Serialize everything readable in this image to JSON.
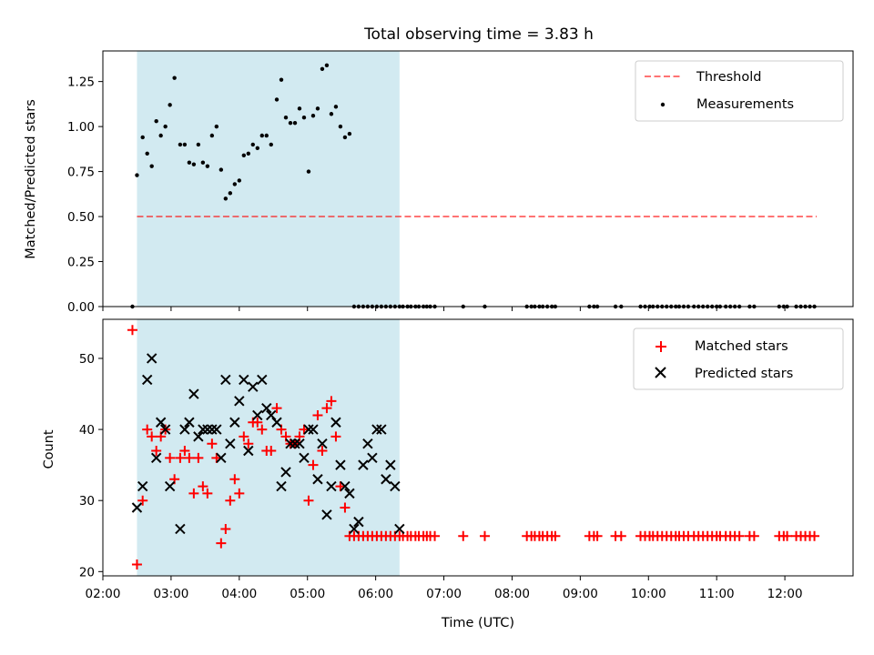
{
  "colors": {
    "shade": "#add8e6",
    "threshold": "#ff0000",
    "measurement": "#000000",
    "matched": "#ff0000",
    "predicted": "#000000"
  },
  "chart_data": [
    {
      "type": "scatter",
      "title": "Total observing time = 3.83 h",
      "xlabel": "",
      "ylabel": "Matched/Predicted stars",
      "xlim": [
        "02:00",
        "13:00"
      ],
      "ylim": [
        0,
        1.42
      ],
      "yticks": [
        0.0,
        0.25,
        0.5,
        0.75,
        1.0,
        1.25
      ],
      "ytick_labels": [
        "0.00",
        "0.25",
        "0.50",
        "0.75",
        "1.00",
        "1.25"
      ],
      "shaded_interval": [
        "02:30",
        "06:21"
      ],
      "legend_position": "top-right",
      "threshold": {
        "name": "Threshold",
        "y": 0.5,
        "x_range": [
          "02:30",
          "12:28"
        ]
      },
      "series": [
        {
          "name": "Measurements",
          "x": [
            "02:26",
            "02:30",
            "02:35",
            "02:39",
            "02:43",
            "02:47",
            "02:51",
            "02:55",
            "02:59",
            "03:03",
            "03:08",
            "03:12",
            "03:16",
            "03:20",
            "03:24",
            "03:28",
            "03:32",
            "03:36",
            "03:40",
            "03:44",
            "03:48",
            "03:52",
            "03:56",
            "04:00",
            "04:04",
            "04:08",
            "04:12",
            "04:16",
            "04:20",
            "04:24",
            "04:28",
            "04:33",
            "04:37",
            "04:41",
            "04:45",
            "04:49",
            "04:53",
            "04:57",
            "05:01",
            "05:05",
            "05:09",
            "05:13",
            "05:17",
            "05:21",
            "05:25",
            "05:29",
            "05:33",
            "05:37",
            "05:41",
            "05:45",
            "05:49",
            "05:53",
            "05:57",
            "06:01",
            "06:05",
            "06:09",
            "06:13",
            "06:17",
            "06:21",
            "06:24",
            "06:28",
            "06:31",
            "06:35",
            "06:38",
            "06:42",
            "06:45",
            "06:48",
            "06:52",
            "07:17",
            "07:36",
            "08:13",
            "08:17",
            "08:20",
            "08:24",
            "08:27",
            "08:31",
            "08:35",
            "08:38",
            "09:08",
            "09:12",
            "09:15",
            "09:31",
            "09:36",
            "09:53",
            "09:57",
            "10:01",
            "10:04",
            "10:08",
            "10:12",
            "10:16",
            "10:20",
            "10:24",
            "10:27",
            "10:31",
            "10:35",
            "10:40",
            "10:44",
            "10:48",
            "10:52",
            "10:56",
            "11:00",
            "11:03",
            "11:08",
            "11:12",
            "11:16",
            "11:20",
            "11:29",
            "11:33",
            "11:55",
            "11:59",
            "12:02",
            "12:10",
            "12:14",
            "12:18",
            "12:22",
            "12:26"
          ],
          "y": [
            0.0,
            0.73,
            0.94,
            0.85,
            0.78,
            1.03,
            0.95,
            1.0,
            1.12,
            1.27,
            0.9,
            0.9,
            0.8,
            0.79,
            0.9,
            0.8,
            0.78,
            0.95,
            1.0,
            0.76,
            0.6,
            0.63,
            0.68,
            0.7,
            0.84,
            0.85,
            0.9,
            0.88,
            0.95,
            0.95,
            0.9,
            1.15,
            1.26,
            1.05,
            1.02,
            1.02,
            1.1,
            1.05,
            0.75,
            1.06,
            1.1,
            1.32,
            1.34,
            1.07,
            1.11,
            1.0,
            0.94,
            0.96,
            0.0,
            0.0,
            0.0,
            0.0,
            0.0,
            0.0,
            0.0,
            0.0,
            0.0,
            0.0,
            0.0,
            0.0,
            0.0,
            0.0,
            0.0,
            0.0,
            0.0,
            0.0,
            0.0,
            0.0,
            0.0,
            0.0,
            0.0,
            0.0,
            0.0,
            0.0,
            0.0,
            0.0,
            0.0,
            0.0,
            0.0,
            0.0,
            0.0,
            0.0,
            0.0,
            0.0,
            0.0,
            0.0,
            0.0,
            0.0,
            0.0,
            0.0,
            0.0,
            0.0,
            0.0,
            0.0,
            0.0,
            0.0,
            0.0,
            0.0,
            0.0,
            0.0,
            0.0,
            0.0,
            0.0,
            0.0,
            0.0,
            0.0,
            0.0,
            0.0,
            0.0,
            0.0,
            0.0,
            0.0,
            0.0,
            0.0,
            0.0,
            0.0
          ]
        }
      ]
    },
    {
      "type": "scatter",
      "title": "",
      "xlabel": "Time (UTC)",
      "ylabel": "Count",
      "xlim": [
        "02:00",
        "13:00"
      ],
      "ylim": [
        19.4,
        55.5
      ],
      "yticks": [
        20,
        30,
        40,
        50
      ],
      "ytick_labels": [
        "20",
        "30",
        "40",
        "50"
      ],
      "xticks": [
        "02:00",
        "03:00",
        "04:00",
        "05:00",
        "06:00",
        "07:00",
        "08:00",
        "09:00",
        "10:00",
        "11:00",
        "12:00"
      ],
      "xtick_labels": [
        "02:00",
        "03:00",
        "04:00",
        "05:00",
        "06:00",
        "07:00",
        "08:00",
        "09:00",
        "10:00",
        "11:00",
        "12:00"
      ],
      "shaded_interval": [
        "02:30",
        "06:21"
      ],
      "legend_position": "top-right",
      "series": [
        {
          "name": "Matched stars",
          "marker": "plus",
          "x": [
            "02:26",
            "02:30",
            "02:35",
            "02:39",
            "02:43",
            "02:47",
            "02:51",
            "02:55",
            "02:59",
            "03:03",
            "03:08",
            "03:12",
            "03:16",
            "03:20",
            "03:24",
            "03:28",
            "03:32",
            "03:36",
            "03:40",
            "03:44",
            "03:48",
            "03:52",
            "03:56",
            "04:00",
            "04:04",
            "04:08",
            "04:12",
            "04:16",
            "04:20",
            "04:24",
            "04:28",
            "04:33",
            "04:37",
            "04:41",
            "04:45",
            "04:49",
            "04:53",
            "04:57",
            "05:01",
            "05:05",
            "05:09",
            "05:13",
            "05:17",
            "05:21",
            "05:25",
            "05:29",
            "05:33",
            "05:37",
            "05:41",
            "05:45",
            "05:49",
            "05:53",
            "05:57",
            "06:01",
            "06:05",
            "06:09",
            "06:13",
            "06:17",
            "06:21",
            "06:24",
            "06:28",
            "06:31",
            "06:35",
            "06:38",
            "06:42",
            "06:45",
            "06:48",
            "06:52",
            "07:17",
            "07:36",
            "08:13",
            "08:17",
            "08:20",
            "08:24",
            "08:27",
            "08:31",
            "08:35",
            "08:38",
            "09:08",
            "09:12",
            "09:15",
            "09:31",
            "09:36",
            "09:53",
            "09:57",
            "10:01",
            "10:04",
            "10:08",
            "10:12",
            "10:16",
            "10:20",
            "10:24",
            "10:27",
            "10:31",
            "10:35",
            "10:40",
            "10:44",
            "10:48",
            "10:52",
            "10:56",
            "11:00",
            "11:03",
            "11:08",
            "11:12",
            "11:16",
            "11:20",
            "11:29",
            "11:33",
            "11:55",
            "11:59",
            "12:02",
            "12:10",
            "12:14",
            "12:18",
            "12:22",
            "12:26"
          ],
          "y": [
            54,
            21,
            30,
            40,
            39,
            37,
            39,
            40,
            36,
            33,
            36,
            37,
            36,
            31,
            36,
            32,
            31,
            38,
            36,
            24,
            26,
            30,
            33,
            31,
            39,
            38,
            41,
            41,
            40,
            37,
            37,
            43,
            40,
            39,
            38,
            38,
            39,
            40,
            30,
            35,
            42,
            37,
            43,
            44,
            39,
            32,
            29,
            25,
            25,
            25,
            25,
            25,
            25,
            25,
            25,
            25,
            25,
            25,
            25,
            25,
            25,
            25,
            25,
            25,
            25,
            25,
            25,
            25,
            25,
            25,
            25,
            25,
            25,
            25,
            25,
            25,
            25,
            25,
            25,
            25,
            25,
            25,
            25,
            25,
            25,
            25,
            25,
            25,
            25,
            25,
            25,
            25,
            25,
            25,
            25,
            25,
            25,
            25,
            25,
            25,
            25,
            25,
            25,
            25,
            25,
            25,
            25,
            25,
            25,
            25,
            25,
            25,
            25,
            25,
            25,
            25
          ]
        },
        {
          "name": "Predicted stars",
          "marker": "x",
          "x": [
            "02:30",
            "02:35",
            "02:39",
            "02:43",
            "02:47",
            "02:51",
            "02:55",
            "02:59",
            "03:08",
            "03:12",
            "03:16",
            "03:20",
            "03:24",
            "03:28",
            "03:32",
            "03:36",
            "03:40",
            "03:44",
            "03:48",
            "03:52",
            "03:56",
            "04:00",
            "04:04",
            "04:08",
            "04:12",
            "04:16",
            "04:20",
            "04:24",
            "04:28",
            "04:33",
            "04:37",
            "04:41",
            "04:45",
            "04:49",
            "04:53",
            "04:57",
            "05:01",
            "05:05",
            "05:09",
            "05:13",
            "05:17",
            "05:21",
            "05:25",
            "05:29",
            "05:33",
            "05:37",
            "05:41",
            "05:45",
            "05:49",
            "05:53",
            "05:57",
            "06:01",
            "06:05",
            "06:09",
            "06:13",
            "06:17",
            "06:21"
          ],
          "y": [
            29,
            32,
            47,
            50,
            36,
            41,
            40,
            32,
            26,
            40,
            41,
            45,
            39,
            40,
            40,
            40,
            40,
            36,
            47,
            38,
            41,
            44,
            47,
            37,
            46,
            42,
            47,
            43,
            42,
            41,
            32,
            34,
            38,
            38,
            38,
            36,
            40,
            40,
            33,
            38,
            28,
            32,
            41,
            35,
            32,
            31,
            26,
            27,
            35,
            38,
            36,
            40,
            40,
            33,
            35,
            32,
            26
          ]
        }
      ]
    }
  ]
}
